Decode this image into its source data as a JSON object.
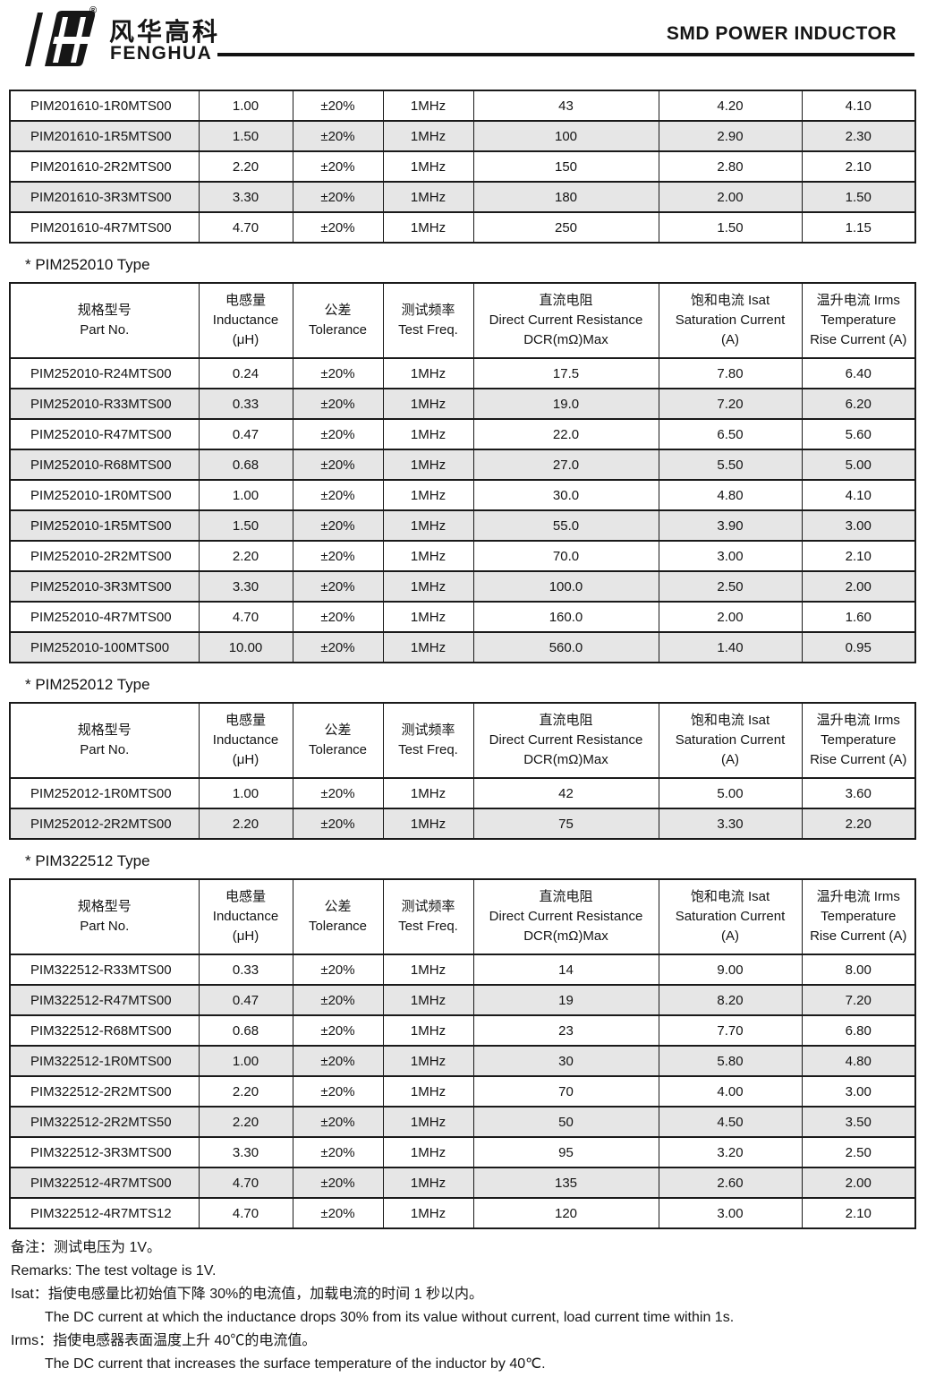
{
  "header": {
    "logo_zh": "风华高科",
    "logo_en": "FENGHUA",
    "registered": "®",
    "title": "SMD POWER INDUCTOR"
  },
  "colors": {
    "row_shade": "#e6e6e6",
    "border": "#1a1a1a",
    "rule": "#121212"
  },
  "columns": [
    {
      "zh": "规格型号",
      "en": "Part No.",
      "sub": ""
    },
    {
      "zh": "电感量",
      "en": "Inductance",
      "sub": "(μH)"
    },
    {
      "zh": "公差",
      "en": "Tolerance",
      "sub": ""
    },
    {
      "zh": "测试频率",
      "en": "Test Freq.",
      "sub": ""
    },
    {
      "zh": "直流电阻",
      "en": "Direct Current Resistance",
      "sub": "DCR(mΩ)Max"
    },
    {
      "zh": "饱和电流 Isat",
      "en": "Saturation Current",
      "sub": "(A)"
    },
    {
      "zh": "温升电流 Irms",
      "en": "Temperature",
      "sub": "Rise Current (A)"
    }
  ],
  "tables": [
    {
      "title": "",
      "show_header": false,
      "rows": [
        [
          "PIM201610-1R0MTS00",
          "1.00",
          "±20%",
          "1MHz",
          "43",
          "4.20",
          "4.10"
        ],
        [
          "PIM201610-1R5MTS00",
          "1.50",
          "±20%",
          "1MHz",
          "100",
          "2.90",
          "2.30"
        ],
        [
          "PIM201610-2R2MTS00",
          "2.20",
          "±20%",
          "1MHz",
          "150",
          "2.80",
          "2.10"
        ],
        [
          "PIM201610-3R3MTS00",
          "3.30",
          "±20%",
          "1MHz",
          "180",
          "2.00",
          "1.50"
        ],
        [
          "PIM201610-4R7MTS00",
          "4.70",
          "±20%",
          "1MHz",
          "250",
          "1.50",
          "1.15"
        ]
      ]
    },
    {
      "title": "* PIM252010 Type",
      "show_header": true,
      "rows": [
        [
          "PIM252010-R24MTS00",
          "0.24",
          "±20%",
          "1MHz",
          "17.5",
          "7.80",
          "6.40"
        ],
        [
          "PIM252010-R33MTS00",
          "0.33",
          "±20%",
          "1MHz",
          "19.0",
          "7.20",
          "6.20"
        ],
        [
          "PIM252010-R47MTS00",
          "0.47",
          "±20%",
          "1MHz",
          "22.0",
          "6.50",
          "5.60"
        ],
        [
          "PIM252010-R68MTS00",
          "0.68",
          "±20%",
          "1MHz",
          "27.0",
          "5.50",
          "5.00"
        ],
        [
          "PIM252010-1R0MTS00",
          "1.00",
          "±20%",
          "1MHz",
          "30.0",
          "4.80",
          "4.10"
        ],
        [
          "PIM252010-1R5MTS00",
          "1.50",
          "±20%",
          "1MHz",
          "55.0",
          "3.90",
          "3.00"
        ],
        [
          "PIM252010-2R2MTS00",
          "2.20",
          "±20%",
          "1MHz",
          "70.0",
          "3.00",
          "2.10"
        ],
        [
          "PIM252010-3R3MTS00",
          "3.30",
          "±20%",
          "1MHz",
          "100.0",
          "2.50",
          "2.00"
        ],
        [
          "PIM252010-4R7MTS00",
          "4.70",
          "±20%",
          "1MHz",
          "160.0",
          "2.00",
          "1.60"
        ],
        [
          "PIM252010-100MTS00",
          "10.00",
          "±20%",
          "1MHz",
          "560.0",
          "1.40",
          "0.95"
        ]
      ]
    },
    {
      "title": "* PIM252012 Type",
      "show_header": true,
      "rows": [
        [
          "PIM252012-1R0MTS00",
          "1.00",
          "±20%",
          "1MHz",
          "42",
          "5.00",
          "3.60"
        ],
        [
          "PIM252012-2R2MTS00",
          "2.20",
          "±20%",
          "1MHz",
          "75",
          "3.30",
          "2.20"
        ]
      ]
    },
    {
      "title": "* PIM322512 Type",
      "show_header": true,
      "rows": [
        [
          "PIM322512-R33MTS00",
          "0.33",
          "±20%",
          "1MHz",
          "14",
          "9.00",
          "8.00"
        ],
        [
          "PIM322512-R47MTS00",
          "0.47",
          "±20%",
          "1MHz",
          "19",
          "8.20",
          "7.20"
        ],
        [
          "PIM322512-R68MTS00",
          "0.68",
          "±20%",
          "1MHz",
          "23",
          "7.70",
          "6.80"
        ],
        [
          "PIM322512-1R0MTS00",
          "1.00",
          "±20%",
          "1MHz",
          "30",
          "5.80",
          "4.80"
        ],
        [
          "PIM322512-2R2MTS00",
          "2.20",
          "±20%",
          "1MHz",
          "70",
          "4.00",
          "3.00"
        ],
        [
          "PIM322512-2R2MTS50",
          "2.20",
          "±20%",
          "1MHz",
          "50",
          "4.50",
          "3.50"
        ],
        [
          "PIM322512-3R3MTS00",
          "3.30",
          "±20%",
          "1MHz",
          "95",
          "3.20",
          "2.50"
        ],
        [
          "PIM322512-4R7MTS00",
          "4.70",
          "±20%",
          "1MHz",
          "135",
          "2.60",
          "2.00"
        ],
        [
          "PIM322512-4R7MTS12",
          "4.70",
          "±20%",
          "1MHz",
          "120",
          "3.00",
          "2.10"
        ]
      ]
    }
  ],
  "remarks": [
    {
      "text": "备注：测试电压为 1V。",
      "indent": false
    },
    {
      "text": "Remarks: The test voltage is 1V.",
      "indent": false
    },
    {
      "text": "Isat：指使电感量比初始值下降 30%的电流值，加载电流的时间 1 秒以内。",
      "indent": false
    },
    {
      "text": "The DC current at which the inductance drops 30% from its value without current, load current time within 1s.",
      "indent": true
    },
    {
      "text": "Irms：指使电感器表面温度上升 40℃的电流值。",
      "indent": false
    },
    {
      "text": "The DC current that increases the surface temperature of the inductor by 40℃.",
      "indent": true
    }
  ]
}
